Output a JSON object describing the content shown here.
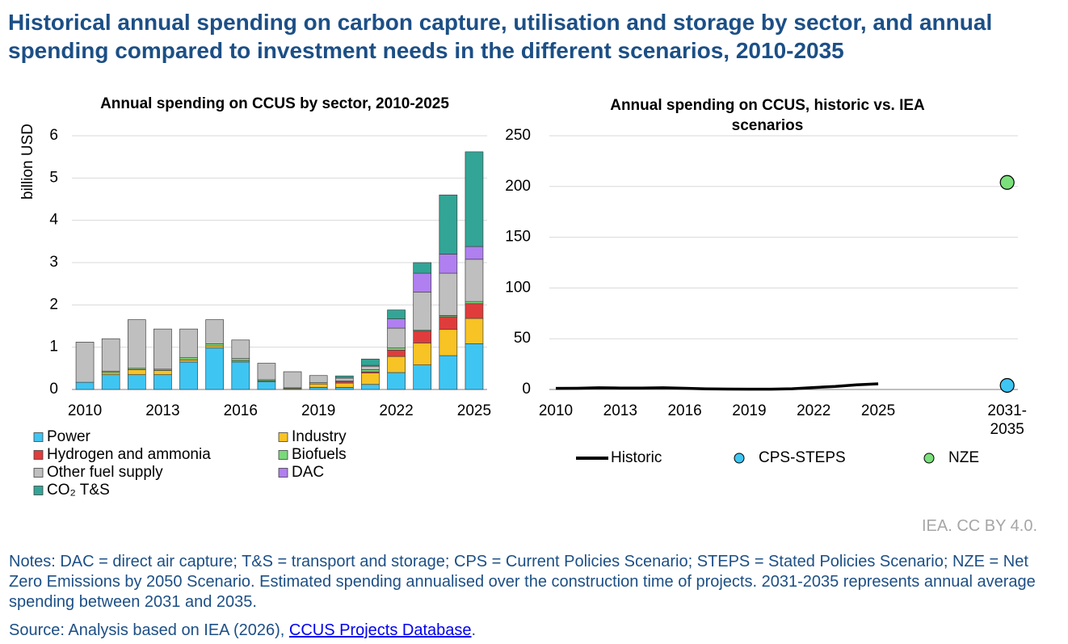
{
  "header": {
    "title": "Historical annual spending on carbon capture, utilisation and storage by sector, and annual spending compared to investment needs in the different scenarios, 2010-2035"
  },
  "chart_data": [
    {
      "type": "bar",
      "stacked": true,
      "title": "Annual spending on CCUS by sector, 2010-2025",
      "y_label": "billion USD",
      "categories": [
        "2010",
        null,
        null,
        "2013",
        null,
        null,
        "2016",
        null,
        null,
        "2019",
        null,
        null,
        "2022",
        null,
        null,
        "2025"
      ],
      "series": [
        {
          "name": "Power",
          "color": "#3fc5f2",
          "values": [
            0.17,
            0.35,
            0.35,
            0.35,
            0.65,
            0.98,
            0.65,
            0.18,
            0.02,
            0.05,
            0.05,
            0.12,
            0.4,
            0.58,
            0.8,
            1.08
          ]
        },
        {
          "name": "Industry",
          "color": "#f7c325",
          "values": [
            0,
            0.05,
            0.12,
            0.1,
            0.05,
            0.05,
            0.03,
            0.02,
            0.02,
            0.08,
            0.1,
            0.27,
            0.38,
            0.52,
            0.62,
            0.6
          ]
        },
        {
          "name": "Hydrogen and ammonia",
          "color": "#e03c3c",
          "values": [
            0,
            0,
            0,
            0,
            0,
            0,
            0,
            0,
            0,
            0,
            0.03,
            0.03,
            0.15,
            0.28,
            0.3,
            0.35
          ]
        },
        {
          "name": "Biofuels",
          "color": "#7bd87b",
          "values": [
            0,
            0.03,
            0.03,
            0.03,
            0.05,
            0.05,
            0.05,
            0.03,
            0,
            0.03,
            0.02,
            0.05,
            0.05,
            0.02,
            0.03,
            0.05
          ]
        },
        {
          "name": "Other fuel supply",
          "color": "#bfbfbf",
          "values": [
            0.95,
            0.77,
            1.15,
            0.95,
            0.68,
            0.57,
            0.44,
            0.39,
            0.38,
            0.17,
            0.07,
            0.08,
            0.47,
            0.9,
            1.0,
            1.0
          ]
        },
        {
          "name": "DAC",
          "color": "#b07ff0",
          "values": [
            0,
            0,
            0,
            0,
            0,
            0,
            0,
            0,
            0,
            0,
            0,
            0.02,
            0.22,
            0.45,
            0.45,
            0.3
          ]
        },
        {
          "name": "CO₂ T&S",
          "color": "#32a596",
          "values": [
            0,
            0,
            0,
            0,
            0,
            0,
            0,
            0,
            0,
            0,
            0.05,
            0.15,
            0.21,
            0.25,
            1.4,
            2.24
          ]
        }
      ],
      "ylim": [
        0,
        6
      ],
      "yticks": [
        0,
        1,
        2,
        3,
        4,
        5,
        6
      ],
      "grid": true
    },
    {
      "type": "line",
      "title": "Annual spending on CCUS, historic vs. IEA scenarios",
      "series": [
        {
          "name": "Historic",
          "type": "line",
          "color": "#000000",
          "x": [
            2010,
            2011,
            2012,
            2013,
            2014,
            2015,
            2016,
            2017,
            2018,
            2019,
            2020,
            2021,
            2022,
            2023,
            2024,
            2025
          ],
          "values": [
            1.13,
            1.2,
            1.65,
            1.43,
            1.43,
            1.65,
            1.17,
            0.62,
            0.42,
            0.33,
            0.32,
            0.72,
            1.88,
            3.0,
            4.6,
            5.62
          ]
        },
        {
          "name": "CPS-STEPS",
          "type": "scatter",
          "color": "#3fc5f2",
          "x": [
            2031
          ],
          "values": [
            4
          ]
        },
        {
          "name": "NZE",
          "type": "scatter",
          "color": "#7be07b",
          "x": [
            2031
          ],
          "values": [
            204
          ]
        }
      ],
      "xlim": [
        2009.7,
        2031.5
      ],
      "xticks": [
        2010,
        2013,
        2016,
        2019,
        2022,
        2025,
        {
          "value": 2031,
          "label": "2031-2035"
        }
      ],
      "ylim": [
        0,
        250
      ],
      "yticks": [
        0,
        50,
        100,
        150,
        200,
        250
      ],
      "grid": true
    }
  ],
  "credit": "IEA. CC BY 4.0.",
  "notes": "Notes: DAC = direct air capture; T&S = transport and storage; CPS = Current Policies Scenario; STEPS = Stated Policies Scenario; NZE = Net Zero Emissions by 2050 Scenario. Estimated spending annualised over the construction time of projects. 2031-2035 represents annual average spending between 2031 and 2035.",
  "source": {
    "prefix": "Source: Analysis based on IEA (2026), ",
    "link": "CCUS Projects Database",
    "suffix": "."
  }
}
